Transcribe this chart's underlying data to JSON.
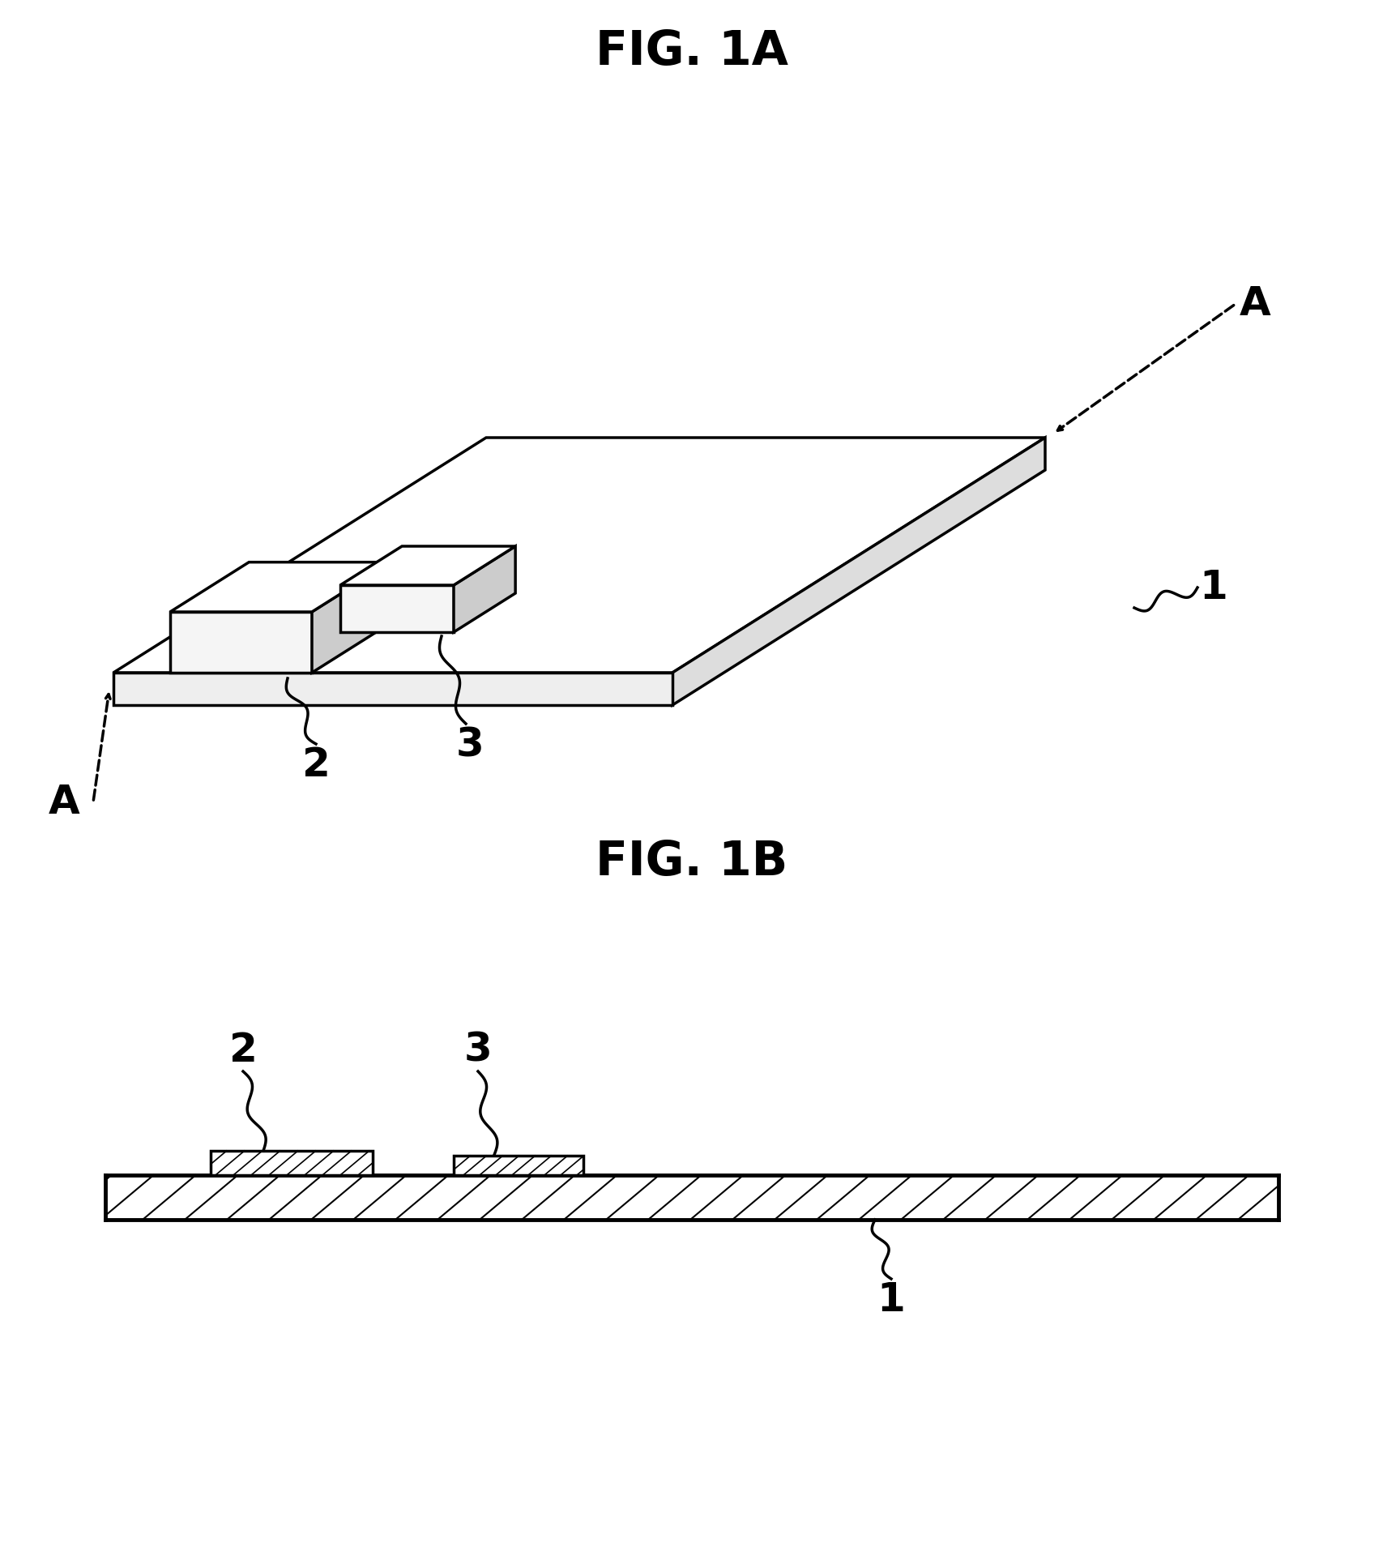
{
  "title_1A": "FIG. 1A",
  "title_1B": "FIG. 1B",
  "bg_color": "#ffffff",
  "line_color": "#000000",
  "fig_size": [
    17.08,
    19.2
  ],
  "dpi": 100,
  "label_A": "A",
  "label_1": "1",
  "label_2": "2",
  "label_3": "3"
}
